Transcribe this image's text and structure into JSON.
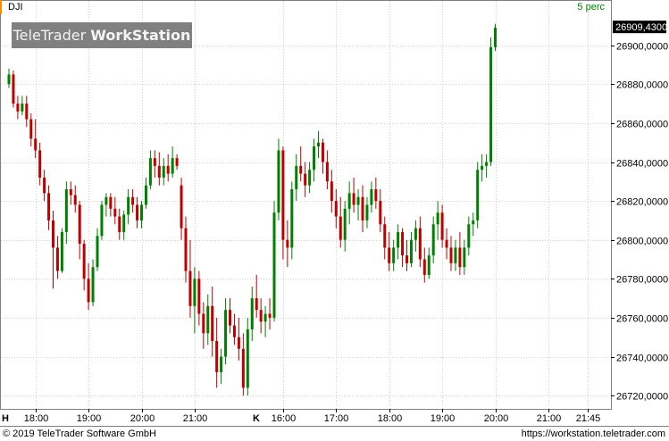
{
  "header": {
    "symbol": "DJI",
    "period_label": "5 perc",
    "logo_part1": "TeleTrader",
    "logo_part2": "WorkStation",
    "accent_color": "#ff8c00"
  },
  "footer": {
    "copyright": "© 2019 TeleTrader Software GmbH",
    "url": "https://workstation.teletrader.com"
  },
  "chart_data": {
    "type": "candlestick",
    "ylim": [
      26715,
      26915
    ],
    "y_ticks": [
      "26720,0000",
      "26740,0000",
      "26760,0000",
      "26780,0000",
      "26800,0000",
      "26820,0000",
      "26840,0000",
      "26860,0000",
      "26880,0000",
      "26900,0000"
    ],
    "y_tick_values": [
      26720,
      26740,
      26760,
      26780,
      26800,
      26820,
      26840,
      26860,
      26880,
      26900
    ],
    "last_value_label": "26909,4300",
    "last_value": 26909.43,
    "up_color": "#008000",
    "down_color": "#c00000",
    "session_markers": [
      {
        "label": "H",
        "index": 0
      },
      {
        "label": "K",
        "index": 56
      }
    ],
    "x_ticks": [
      {
        "label": "18:00",
        "index": 6
      },
      {
        "label": "19:00",
        "index": 18
      },
      {
        "label": "20:00",
        "index": 30
      },
      {
        "label": "21:00",
        "index": 42
      },
      {
        "label": "16:00",
        "index": 62
      },
      {
        "label": "17:00",
        "index": 74
      },
      {
        "label": "18:00",
        "index": 86
      },
      {
        "label": "19:00",
        "index": 98
      },
      {
        "label": "20:00",
        "index": 110
      },
      {
        "label": "21:00",
        "index": 122
      },
      {
        "label": "21:45",
        "index": 131
      }
    ],
    "candles": [
      [
        26880,
        26888,
        26878,
        26885
      ],
      [
        26885,
        26887,
        26868,
        26870
      ],
      [
        26870,
        26874,
        26862,
        26866
      ],
      [
        26866,
        26874,
        26864,
        26870
      ],
      [
        26870,
        26874,
        26858,
        26862
      ],
      [
        26862,
        26865,
        26848,
        26852
      ],
      [
        26852,
        26862,
        26842,
        26846
      ],
      [
        26846,
        26850,
        26828,
        26832
      ],
      [
        26832,
        26836,
        26820,
        26824
      ],
      [
        26824,
        26828,
        26805,
        26810
      ],
      [
        26810,
        26815,
        26775,
        26796
      ],
      [
        26796,
        26802,
        26780,
        26784
      ],
      [
        26784,
        26806,
        26783,
        26804
      ],
      [
        26804,
        26830,
        26798,
        26826
      ],
      [
        26826,
        26830,
        26818,
        26823
      ],
      [
        26823,
        26828,
        26814,
        26818
      ],
      [
        26818,
        26820,
        26790,
        26798
      ],
      [
        26798,
        26800,
        26774,
        26780
      ],
      [
        26780,
        26788,
        26764,
        26768
      ],
      [
        26768,
        26790,
        26766,
        26786
      ],
      [
        26786,
        26806,
        26784,
        26802
      ],
      [
        26802,
        26820,
        26800,
        26818
      ],
      [
        26818,
        26824,
        26812,
        26822
      ],
      [
        26822,
        26824,
        26812,
        26816
      ],
      [
        26816,
        26822,
        26808,
        26812
      ],
      [
        26812,
        26816,
        26800,
        26804
      ],
      [
        26804,
        26815,
        26800,
        26813
      ],
      [
        26813,
        26826,
        26808,
        26822
      ],
      [
        26822,
        26826,
        26814,
        26818
      ],
      [
        26818,
        26822,
        26806,
        26810
      ],
      [
        26810,
        26820,
        26806,
        26818
      ],
      [
        26818,
        26832,
        26816,
        26828
      ],
      [
        26828,
        26846,
        26826,
        26842
      ],
      [
        26842,
        26846,
        26832,
        26838
      ],
      [
        26838,
        26845,
        26828,
        26832
      ],
      [
        26832,
        26842,
        26828,
        26838
      ],
      [
        26838,
        26844,
        26830,
        26834
      ],
      [
        26834,
        26848,
        26832,
        26842
      ],
      [
        26842,
        26844,
        26836,
        26838
      ],
      [
        26828,
        26832,
        26800,
        26806
      ],
      [
        26806,
        26812,
        26778,
        26784
      ],
      [
        26784,
        26800,
        26760,
        26766
      ],
      [
        26766,
        26786,
        26752,
        26780
      ],
      [
        26780,
        26784,
        26756,
        26762
      ],
      [
        26762,
        26768,
        26744,
        26752
      ],
      [
        26752,
        26772,
        26746,
        26766
      ],
      [
        26766,
        26776,
        26740,
        26748
      ],
      [
        26748,
        26760,
        26724,
        26732
      ],
      [
        26732,
        26744,
        26726,
        26740
      ],
      [
        26740,
        26770,
        26736,
        26764
      ],
      [
        26764,
        26770,
        26752,
        26756
      ],
      [
        26756,
        26762,
        26746,
        26750
      ],
      [
        26750,
        26760,
        26738,
        26744
      ],
      [
        26744,
        26752,
        26720,
        26724
      ],
      [
        26724,
        26760,
        26720,
        26754
      ],
      [
        26754,
        26776,
        26748,
        26770
      ],
      [
        26770,
        26782,
        26760,
        26764
      ],
      [
        26764,
        26770,
        26752,
        26758
      ],
      [
        26758,
        26766,
        26750,
        26762
      ],
      [
        26762,
        26770,
        26754,
        26760
      ],
      [
        26760,
        26820,
        26758,
        26814
      ],
      [
        26814,
        26852,
        26810,
        26846
      ],
      [
        26846,
        26848,
        26790,
        26800
      ],
      [
        26800,
        26810,
        26786,
        26796
      ],
      [
        26796,
        26830,
        26790,
        26826
      ],
      [
        26826,
        26844,
        26820,
        26838
      ],
      [
        26838,
        26848,
        26830,
        26834
      ],
      [
        26834,
        26840,
        26822,
        26828
      ],
      [
        26828,
        26840,
        26824,
        26836
      ],
      [
        26836,
        26852,
        26830,
        26848
      ],
      [
        26848,
        26856,
        26842,
        26850
      ],
      [
        26850,
        26852,
        26834,
        26840
      ],
      [
        26840,
        26846,
        26826,
        26830
      ],
      [
        26830,
        26836,
        26814,
        26820
      ],
      [
        26820,
        26826,
        26806,
        26812
      ],
      [
        26812,
        26822,
        26796,
        26800
      ],
      [
        26800,
        26820,
        26794,
        26816
      ],
      [
        26816,
        26830,
        26808,
        26824
      ],
      [
        26824,
        26832,
        26814,
        26818
      ],
      [
        26818,
        26826,
        26810,
        26822
      ],
      [
        26822,
        26828,
        26804,
        26810
      ],
      [
        26810,
        26822,
        26806,
        26818
      ],
      [
        26818,
        26830,
        26814,
        26826
      ],
      [
        26826,
        26832,
        26816,
        26820
      ],
      [
        26820,
        26826,
        26804,
        26808
      ],
      [
        26808,
        26812,
        26790,
        26796
      ],
      [
        26796,
        26804,
        26784,
        26788
      ],
      [
        26788,
        26800,
        26784,
        26796
      ],
      [
        26796,
        26808,
        26790,
        26804
      ],
      [
        26804,
        26806,
        26786,
        26792
      ],
      [
        26792,
        26800,
        26784,
        26788
      ],
      [
        26788,
        26804,
        26786,
        26800
      ],
      [
        26800,
        26810,
        26794,
        26806
      ],
      [
        26806,
        26812,
        26786,
        26790
      ],
      [
        26790,
        26796,
        26778,
        26782
      ],
      [
        26782,
        26796,
        26780,
        26792
      ],
      [
        26792,
        26812,
        26788,
        26808
      ],
      [
        26808,
        26820,
        26800,
        26814
      ],
      [
        26814,
        26818,
        26796,
        26800
      ],
      [
        26800,
        26806,
        26790,
        26796
      ],
      [
        26796,
        26802,
        26784,
        26788
      ],
      [
        26788,
        26800,
        26784,
        26796
      ],
      [
        26796,
        26804,
        26782,
        26786
      ],
      [
        26786,
        26800,
        26782,
        26796
      ],
      [
        26796,
        26812,
        26792,
        26808
      ],
      [
        26808,
        26814,
        26802,
        26810
      ],
      [
        26810,
        26840,
        26806,
        26836
      ],
      [
        26836,
        26844,
        26830,
        26838
      ],
      [
        26838,
        26844,
        26832,
        26840
      ],
      [
        26840,
        26904,
        26838,
        26899
      ],
      [
        26899,
        26911,
        26897,
        26909
      ]
    ]
  }
}
